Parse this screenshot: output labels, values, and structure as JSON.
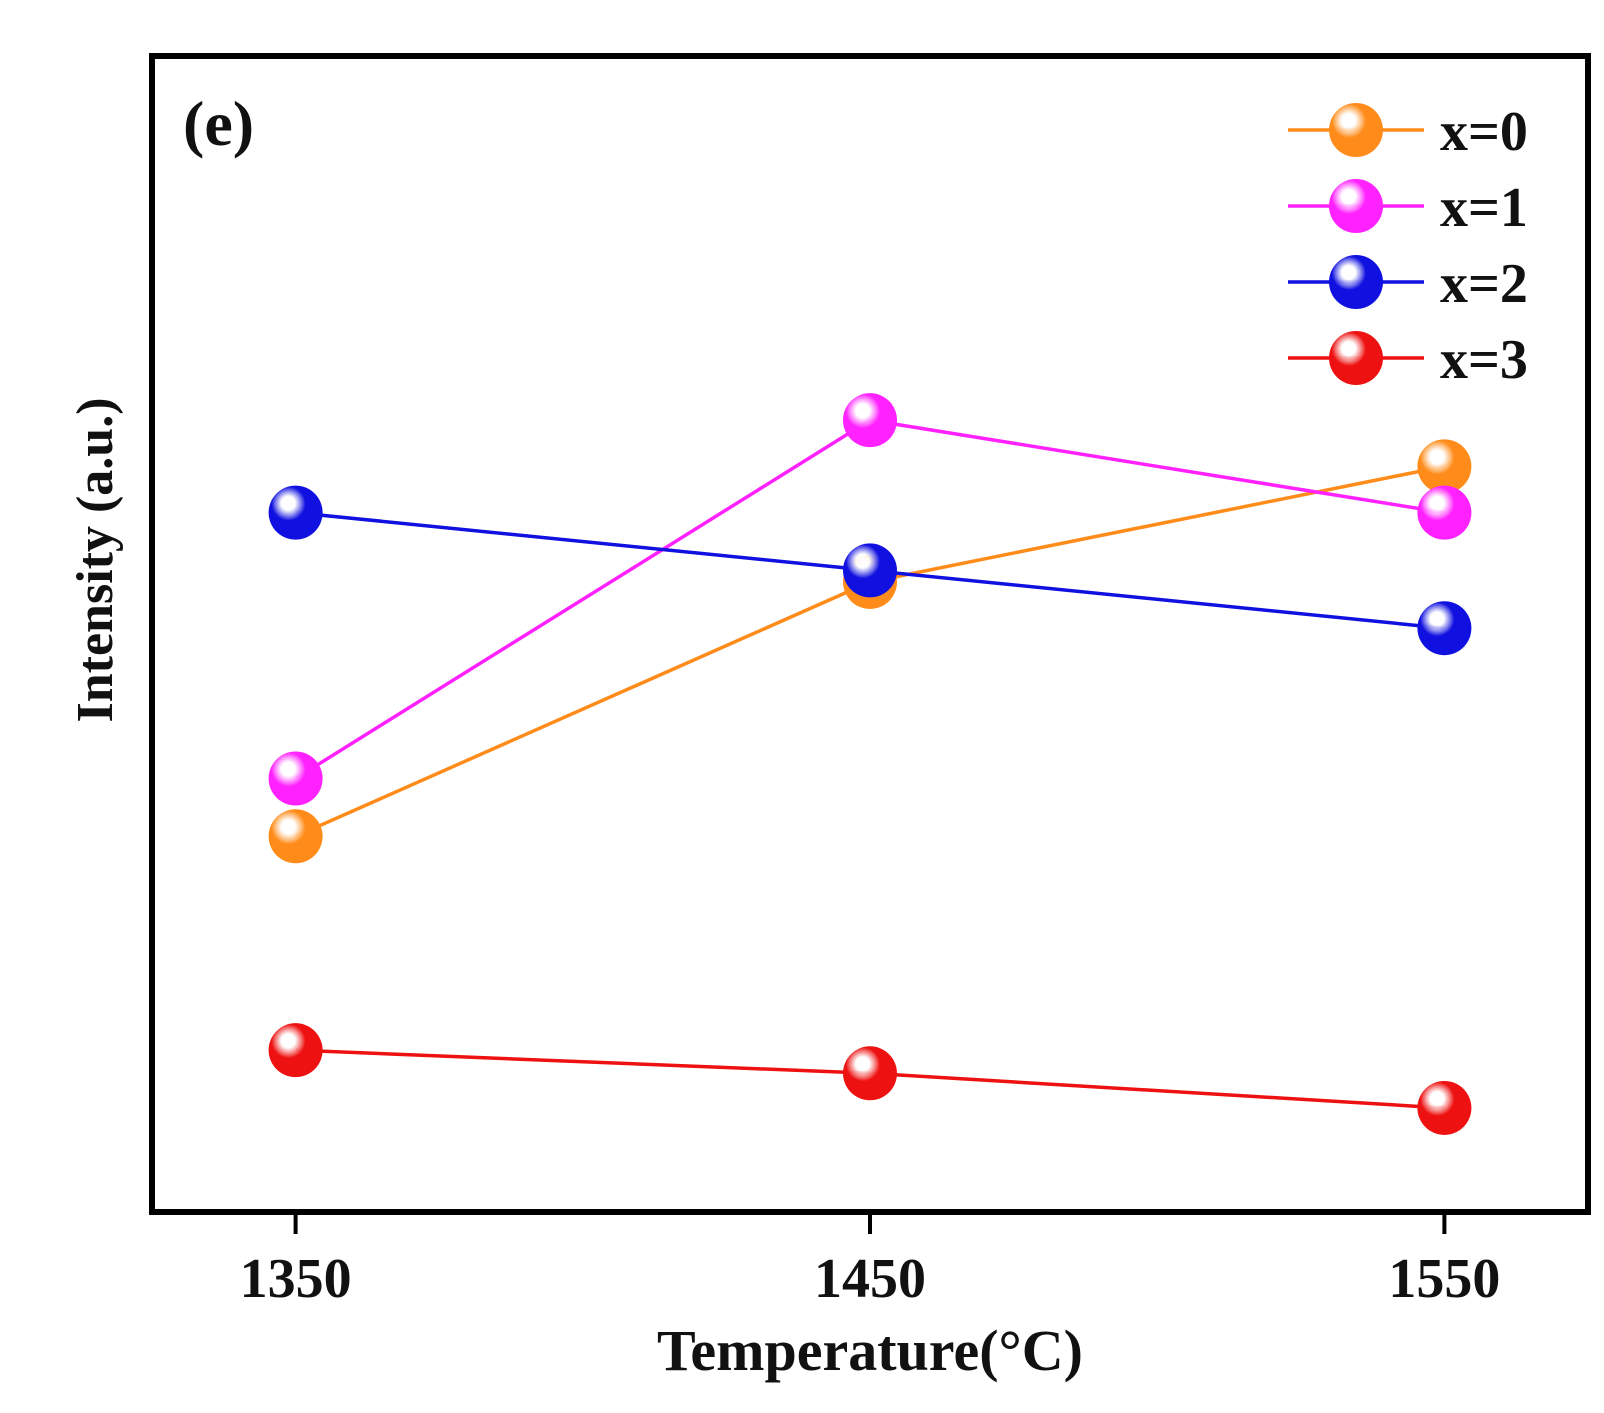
{
  "chart_data": {
    "type": "line",
    "panel_label": "(e)",
    "xlabel": "Temperature(°C)",
    "ylabel": "Intensity (a.u.)",
    "x": [
      1350,
      1450,
      1550
    ],
    "x_tick_labels": [
      "1350",
      "1450",
      "1550"
    ],
    "xlim": [
      1325,
      1575
    ],
    "ylim": [
      0,
      100
    ],
    "y_ticks_shown": false,
    "grid": false,
    "legend_position": "top-right",
    "series": [
      {
        "name": "x=0",
        "color": "#ff8c1a",
        "values": [
          32.5,
          54.5,
          64.5
        ]
      },
      {
        "name": "x=1",
        "color": "#ff22ff",
        "values": [
          37.5,
          68.5,
          60.5
        ]
      },
      {
        "name": "x=2",
        "color": "#1010e0",
        "values": [
          60.5,
          55.5,
          50.5
        ]
      },
      {
        "name": "x=3",
        "color": "#ee1111",
        "values": [
          14.0,
          12.0,
          9.0
        ]
      }
    ]
  }
}
